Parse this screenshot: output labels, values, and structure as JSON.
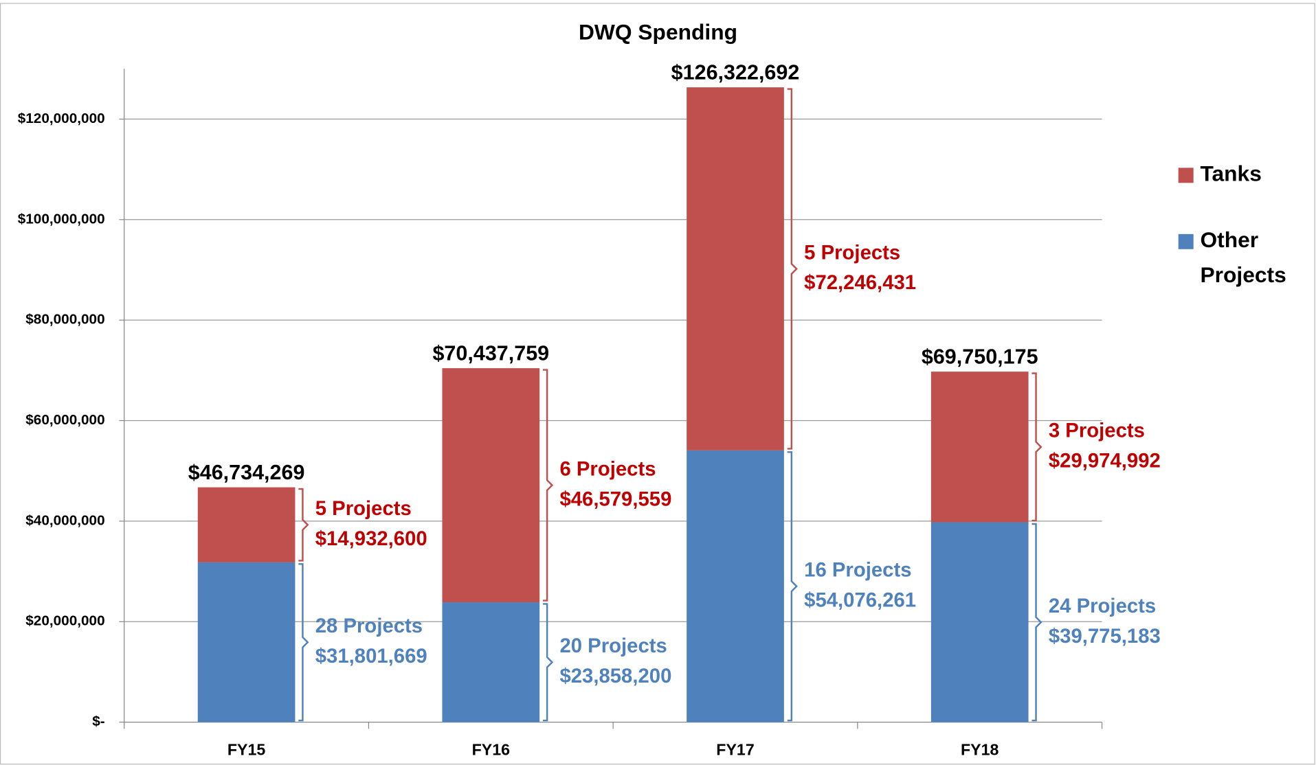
{
  "chart_data": {
    "type": "stacked_bar",
    "title": "DWQ Spending",
    "categories": [
      "FY15",
      "FY16",
      "FY17",
      "FY18"
    ],
    "series": [
      {
        "name": "Other Projects",
        "color": "#4f81bd",
        "values": [
          31801669,
          23858200,
          54076261,
          39775183
        ],
        "value_labels": [
          "$31,801,669",
          "$23,858,200",
          "$54,076,261",
          "$39,775,183"
        ],
        "project_labels": [
          "28 Projects",
          "20 Projects",
          "16 Projects",
          "24 Projects"
        ],
        "label_color": "#4f81bd"
      },
      {
        "name": "Tanks",
        "color": "#c0504d",
        "values": [
          14932600,
          46579559,
          72246431,
          29974992
        ],
        "value_labels": [
          "$14,932,600",
          "$46,579,559",
          "$72,246,431",
          "$29,974,992"
        ],
        "project_labels": [
          "5 Projects",
          "6 Projects",
          "5 Projects",
          "3 Projects"
        ],
        "label_color": "#c00000"
      }
    ],
    "total_labels": [
      "$46,734,269",
      "$70,437,759",
      "$126,322,692",
      "$69,750,175"
    ],
    "ylim": [
      0,
      130000000
    ],
    "yticks": [
      {
        "value": 0,
        "label": "$-"
      },
      {
        "value": 20000000,
        "label": "$20,000,000"
      },
      {
        "value": 40000000,
        "label": "$40,000,000"
      },
      {
        "value": 60000000,
        "label": "$60,000,000"
      },
      {
        "value": 80000000,
        "label": "$80,000,000"
      },
      {
        "value": 100000000,
        "label": "$100,000,000"
      },
      {
        "value": 120000000,
        "label": "$120,000,000"
      }
    ],
    "grid": true,
    "legend": "right"
  }
}
